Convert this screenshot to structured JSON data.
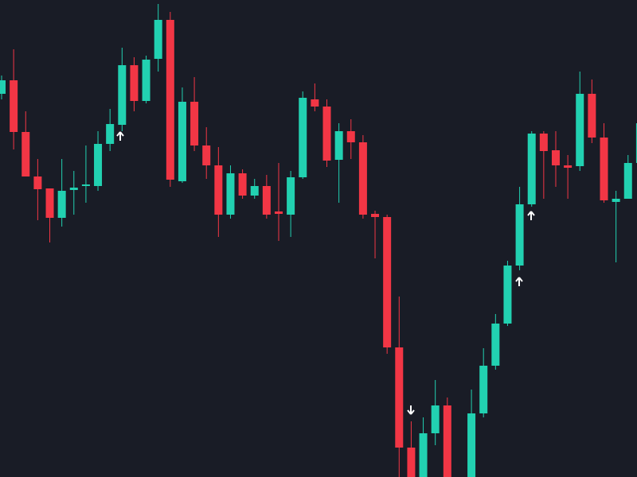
{
  "chart_data": {
    "type": "candlestick",
    "categories": [
      null,
      null,
      null,
      null,
      null,
      null,
      null,
      null,
      null,
      null,
      null,
      null,
      null,
      null,
      null,
      null,
      null,
      null,
      null,
      null,
      null,
      null,
      null,
      null,
      null,
      null,
      null,
      null,
      null,
      null,
      null,
      null,
      null,
      null,
      null,
      null,
      null,
      null,
      null,
      null,
      null,
      null,
      null,
      null,
      null,
      null,
      null,
      null,
      null,
      null,
      null,
      null,
      null,
      null
    ],
    "open": [
      482,
      499,
      434,
      378,
      363,
      326,
      361,
      366,
      366,
      419,
      443,
      518,
      473,
      526,
      575,
      372,
      472,
      417,
      392,
      330,
      382,
      354,
      366,
      334,
      330,
      377,
      475,
      466,
      399,
      435,
      421,
      331,
      327,
      163,
      37,
      0,
      55,
      90,
      null,
      0,
      80,
      140,
      193,
      266,
      343,
      432,
      411,
      392,
      391,
      482,
      427,
      346,
      350,
      395
    ],
    "high": [
      505,
      538,
      460,
      400,
      363,
      400,
      385,
      417,
      435,
      463,
      540,
      528,
      530,
      595,
      585,
      490,
      503,
      440,
      415,
      392,
      387,
      375,
      380,
      395,
      385,
      485,
      495,
      475,
      445,
      450,
      430,
      335,
      330,
      227,
      70,
      75,
      122,
      100,
      null,
      110,
      162,
      205,
      272,
      365,
      435,
      435,
      435,
      405,
      510,
      500,
      445,
      360,
      405,
      445
    ],
    "low": [
      475,
      412,
      378,
      323,
      295,
      315,
      330,
      345,
      360,
      410,
      435,
      460,
      470,
      510,
      365,
      370,
      410,
      375,
      302,
      325,
      350,
      350,
      325,
      297,
      302,
      375,
      460,
      390,
      345,
      400,
      325,
      275,
      155,
      0,
      0,
      0,
      40,
      0,
      null,
      0,
      75,
      135,
      190,
      260,
      340,
      350,
      365,
      350,
      385,
      420,
      345,
      270,
      350,
      390
    ],
    "close": [
      499,
      434,
      378,
      362,
      326,
      360,
      364,
      368,
      419,
      444,
      518,
      473,
      525,
      575,
      374,
      472,
      417,
      392,
      330,
      382,
      354,
      366,
      330,
      331,
      377,
      477,
      466,
      398,
      435,
      421,
      330,
      327,
      163,
      37,
      0,
      55,
      90,
      0,
      null,
      80,
      140,
      193,
      266,
      343,
      432,
      410,
      392,
      389,
      482,
      427,
      348,
      350,
      395,
      445
    ],
    "up_color": "#22d1b1",
    "down_color": "#f23645",
    "ylim": [
      0,
      600
    ]
  }
}
